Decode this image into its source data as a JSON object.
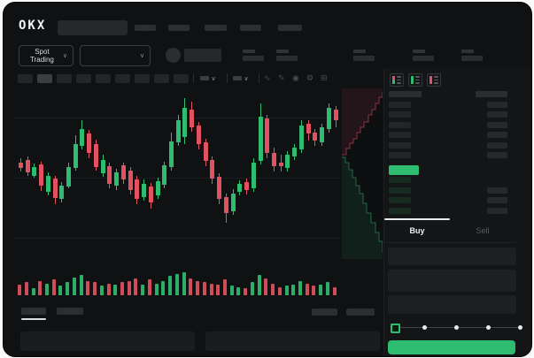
{
  "colors": {
    "green": "#2ebd70",
    "red": "#e0525f",
    "bid_row_green": "#172b20",
    "depth_ask_fill": "rgba(224,82,95,0.10)",
    "depth_ask_line": "rgba(224,82,95,0.55)",
    "depth_bid_fill": "rgba(46,189,112,0.10)",
    "depth_bid_line": "rgba(46,189,112,0.50)"
  },
  "header": {
    "logo": "OKX"
  },
  "icons": {
    "chevron_down": "∨",
    "wave": "∿",
    "pencil": "✎",
    "camera": "◉",
    "gear": "⚙",
    "fullscreen": "⊞"
  },
  "market_bar": {
    "pair_selector_label": "Spot Trading"
  },
  "order_book": {
    "view_toggles": [
      "combined-book",
      "bids-only",
      "asks-only"
    ],
    "ask_rows": 6,
    "bid_rows": 4,
    "bid_rows_with_size_bar": [
      1,
      2,
      3
    ]
  },
  "trade_panel": {
    "tabs": [
      {
        "label": "Buy",
        "active": true
      },
      {
        "label": "Sell",
        "active": false
      }
    ],
    "slider_stops": [
      0,
      25,
      50,
      75,
      100
    ],
    "slider_active_stop": 0
  },
  "chart_data": [
    {
      "type": "candlestick",
      "title": "",
      "xlabel": "",
      "ylabel": "",
      "ylim": [
        0,
        100
      ],
      "grid": true,
      "note_units": "relative price scale 0-100 (no axis labels visible)",
      "x": [
        1,
        2,
        3,
        4,
        5,
        6,
        7,
        8,
        9,
        10,
        11,
        12,
        13,
        14,
        15,
        16,
        17,
        18,
        19,
        20,
        21,
        22,
        23,
        24,
        25,
        26,
        27,
        28,
        29,
        30,
        31,
        32,
        33,
        34,
        35,
        36,
        37,
        38,
        39,
        40,
        41,
        42,
        43,
        44,
        45,
        46,
        47
      ],
      "open": [
        57.5,
        59,
        49.5,
        56,
        40,
        48,
        36,
        43.5,
        54,
        67,
        74,
        68,
        51,
        55,
        44,
        55.5,
        52.5,
        47.5,
        37,
        43.5,
        38,
        44.5,
        54.5,
        69,
        72,
        88,
        79,
        69,
        59,
        49,
        37,
        29,
        40,
        46,
        42,
        58,
        83,
        63,
        57,
        54,
        61,
        65,
        80,
        75,
        69,
        77,
        88
      ],
      "high": [
        60,
        61,
        56.5,
        58,
        51.5,
        49.5,
        46,
        57,
        73,
        82,
        76.5,
        70.5,
        62,
        57,
        53.5,
        57.5,
        54.5,
        49.5,
        47.5,
        45.5,
        48.5,
        58,
        75,
        85,
        95,
        93,
        81,
        71,
        61,
        51,
        39,
        42,
        47,
        48,
        60,
        92,
        85,
        66,
        62,
        64,
        68,
        82,
        82,
        77,
        80,
        92,
        90
      ],
      "low": [
        52,
        49.5,
        48.5,
        41,
        38,
        33,
        34,
        42,
        52.5,
        65,
        60,
        52.5,
        49,
        42,
        41,
        45,
        38.5,
        33,
        35,
        30.5,
        36,
        42.5,
        52.5,
        67,
        68,
        75,
        65,
        55,
        45,
        33,
        22,
        27,
        38,
        38.5,
        40,
        56,
        60,
        52,
        52,
        52,
        59,
        63,
        70,
        67,
        67,
        75,
        78
      ],
      "close": [
        54,
        51.5,
        54.5,
        44,
        49.5,
        36.5,
        44,
        54.5,
        68,
        77,
        63,
        54.5,
        59,
        45,
        51.5,
        47.5,
        41,
        36,
        45,
        34,
        46.5,
        55.5,
        69.5,
        82,
        89,
        78,
        68,
        58,
        48,
        36,
        28,
        39,
        45,
        41,
        57,
        84,
        63,
        55,
        55,
        62,
        66,
        79,
        74,
        70,
        78,
        89,
        82
      ]
    },
    {
      "type": "bar",
      "title": "volume",
      "values": [
        45,
        55,
        30,
        60,
        50,
        65,
        40,
        55,
        75,
        85,
        60,
        55,
        40,
        50,
        45,
        55,
        60,
        70,
        45,
        65,
        50,
        60,
        80,
        90,
        95,
        70,
        60,
        55,
        50,
        45,
        65,
        40,
        35,
        30,
        55,
        85,
        70,
        50,
        35,
        40,
        45,
        60,
        50,
        40,
        45,
        55,
        35
      ],
      "color_rule": "green if close>=open else red"
    },
    {
      "type": "area",
      "title": "depth",
      "asks_points": [
        [
          0,
          75
        ],
        [
          5,
          68
        ],
        [
          9,
          62
        ],
        [
          13,
          57
        ],
        [
          17,
          50
        ],
        [
          21,
          44
        ],
        [
          25,
          38
        ],
        [
          30,
          30
        ],
        [
          34,
          24
        ],
        [
          38,
          17
        ],
        [
          42,
          10
        ],
        [
          46,
          4
        ]
      ],
      "bids_points": [
        [
          0,
          78
        ],
        [
          4,
          84
        ],
        [
          8,
          92
        ],
        [
          12,
          101
        ],
        [
          16,
          110
        ],
        [
          20,
          119
        ],
        [
          24,
          130
        ],
        [
          28,
          141
        ],
        [
          33,
          152
        ],
        [
          38,
          163
        ],
        [
          42,
          173
        ],
        [
          46,
          186
        ]
      ]
    }
  ]
}
